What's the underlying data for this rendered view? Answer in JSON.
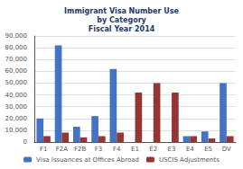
{
  "chart_data": {
    "type": "bar",
    "title": "Immigrant Visa Number Use\nby Category\nFiscal Year 2014",
    "categories": [
      "F1",
      "F2A",
      "F2B",
      "F3",
      "F4",
      "E1",
      "E2",
      "E3",
      "E4",
      "E5",
      "DV"
    ],
    "series": [
      {
        "name": "Visa Issuances at Offices Abroad",
        "color": "#4472C4",
        "values": [
          20000,
          82000,
          13000,
          22000,
          62000,
          0,
          0,
          0,
          5000,
          9000,
          50000
        ]
      },
      {
        "name": "USCIS Adjustments",
        "color": "#943634",
        "values": [
          5000,
          8000,
          4000,
          5000,
          8000,
          42000,
          50000,
          42000,
          5000,
          3000,
          5000
        ]
      }
    ],
    "ylim": [
      0,
      90000
    ],
    "yticks": [
      0,
      {
        "value": 10000,
        "label": "10,000"
      },
      {
        "value": 20000,
        "label": "20,000"
      },
      {
        "value": 30000,
        "label": "30,000"
      },
      {
        "value": 40000,
        "label": "40,000"
      },
      {
        "value": 50000,
        "label": "50,000"
      },
      {
        "value": 60000,
        "label": "60,000"
      },
      {
        "value": 70000,
        "label": "70,000"
      },
      {
        "value": 80000,
        "label": "80,000"
      },
      {
        "value": 90000,
        "label": "90,000"
      }
    ],
    "grid": true,
    "legend": "bottom"
  }
}
